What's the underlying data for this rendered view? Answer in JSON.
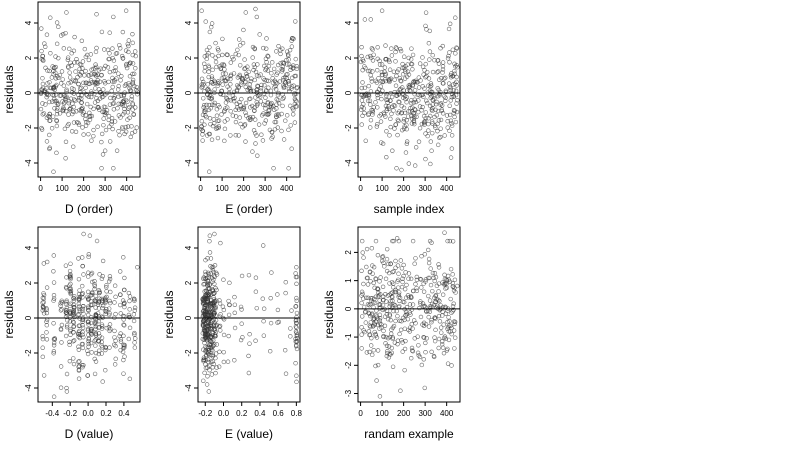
{
  "chart_data": [
    {
      "type": "scatter",
      "title": "",
      "xlabel": "D (order)",
      "ylabel": "residuals",
      "xlim": [
        -12,
        462
      ],
      "ylim": [
        -4.8,
        5.2
      ],
      "xticks": [
        0,
        100,
        200,
        300,
        400
      ],
      "xtick_labels": [
        "0",
        "100",
        "200",
        "300",
        "400"
      ],
      "yticks": [
        -4,
        -2,
        0,
        2,
        4
      ],
      "ytick_labels": [
        "-4",
        "-2",
        "0",
        "2",
        "4"
      ],
      "hline": 0,
      "pattern": "uniform",
      "n_points": 450,
      "x_range": [
        1,
        450
      ],
      "sd": 1.5,
      "seed": 11,
      "outliers": [
        [
          45,
          4.3
        ],
        [
          120,
          4.6
        ],
        [
          260,
          4.5
        ],
        [
          60,
          -4.5
        ],
        [
          300,
          -3.3
        ],
        [
          410,
          3.0
        ]
      ]
    },
    {
      "type": "scatter",
      "title": "",
      "xlabel": "E (order)",
      "ylabel": "residuals",
      "xlim": [
        -12,
        462
      ],
      "ylim": [
        -4.8,
        5.2
      ],
      "xticks": [
        0,
        100,
        200,
        300,
        400
      ],
      "xtick_labels": [
        "0",
        "100",
        "200",
        "300",
        "400"
      ],
      "yticks": [
        -4,
        -2,
        0,
        2,
        4
      ],
      "ytick_labels": [
        "-4",
        "-2",
        "0",
        "2",
        "4"
      ],
      "hline": 0,
      "pattern": "uniform",
      "n_points": 450,
      "x_range": [
        1,
        450
      ],
      "sd": 1.5,
      "seed": 23,
      "outliers": [
        [
          5,
          4.7
        ],
        [
          210,
          4.6
        ],
        [
          255,
          4.8
        ],
        [
          40,
          -4.5
        ],
        [
          330,
          -2.6
        ],
        [
          335,
          -2.5
        ]
      ]
    },
    {
      "type": "scatter",
      "title": "",
      "xlabel": "sample index",
      "ylabel": "residuals",
      "xlim": [
        -12,
        462
      ],
      "ylim": [
        -4.8,
        5.2
      ],
      "xticks": [
        0,
        100,
        200,
        300,
        400
      ],
      "xtick_labels": [
        "0",
        "100",
        "200",
        "300",
        "400"
      ],
      "yticks": [
        -4,
        -2,
        0,
        2,
        4
      ],
      "ytick_labels": [
        "-4",
        "-2",
        "0",
        "2",
        "4"
      ],
      "hline": 0,
      "pattern": "uniform",
      "n_points": 450,
      "x_range": [
        1,
        450
      ],
      "sd": 1.5,
      "seed": 37,
      "outliers": [
        [
          100,
          4.7
        ],
        [
          190,
          -4.4
        ],
        [
          440,
          4.3
        ],
        [
          20,
          4.2
        ],
        [
          330,
          -3.3
        ]
      ]
    },
    {
      "type": "scatter",
      "title": "",
      "xlabel": "D (value)",
      "ylabel": "residuals",
      "xlim": [
        -0.56,
        0.58
      ],
      "ylim": [
        -4.8,
        5.2
      ],
      "xticks": [
        -0.4,
        -0.2,
        0.0,
        0.2,
        0.4
      ],
      "xtick_labels": [
        "-0.4",
        "-0.2",
        "0.0",
        "0.2",
        "0.4"
      ],
      "yticks": [
        -4,
        -2,
        0,
        2,
        4
      ],
      "ytick_labels": [
        "-4",
        "-2",
        "0",
        "2",
        "4"
      ],
      "hline": 0,
      "pattern": "columns",
      "sd": 1.5,
      "seed": 53,
      "columns": [
        [
          -0.5,
          18
        ],
        [
          -0.46,
          10
        ],
        [
          -0.38,
          14
        ],
        [
          -0.3,
          12
        ],
        [
          -0.24,
          22
        ],
        [
          -0.2,
          30
        ],
        [
          -0.16,
          26
        ],
        [
          -0.1,
          34
        ],
        [
          -0.06,
          28
        ],
        [
          0.0,
          30
        ],
        [
          0.04,
          22
        ],
        [
          0.08,
          32
        ],
        [
          0.12,
          24
        ],
        [
          0.16,
          20
        ],
        [
          0.2,
          18
        ],
        [
          0.24,
          14
        ],
        [
          0.3,
          12
        ],
        [
          0.36,
          10
        ],
        [
          0.4,
          24
        ],
        [
          0.46,
          10
        ],
        [
          0.52,
          12
        ]
      ],
      "outliers": [
        [
          -0.38,
          -4.5
        ],
        [
          -0.05,
          4.8
        ],
        [
          0.02,
          4.7
        ],
        [
          0.1,
          4.4
        ],
        [
          0.55,
          2.9
        ]
      ]
    },
    {
      "type": "scatter",
      "title": "",
      "xlabel": "E (value)",
      "ylabel": "residuals",
      "xlim": [
        -0.28,
        0.84
      ],
      "ylim": [
        -4.8,
        5.2
      ],
      "xticks": [
        -0.2,
        0.0,
        0.2,
        0.4,
        0.6,
        0.8
      ],
      "xtick_labels": [
        "-0.2",
        "0.0",
        "0.2",
        "0.4",
        "0.6",
        "0.8"
      ],
      "yticks": [
        -4,
        -2,
        0,
        2,
        4
      ],
      "ytick_labels": [
        "-4",
        "-2",
        "0",
        "2",
        "4"
      ],
      "hline": 0,
      "pattern": "columns",
      "sd": 1.5,
      "seed": 71,
      "columns": [
        [
          -0.22,
          40
        ],
        [
          -0.2,
          60
        ],
        [
          -0.18,
          55
        ],
        [
          -0.16,
          45
        ],
        [
          -0.14,
          40
        ],
        [
          -0.12,
          35
        ],
        [
          -0.1,
          35
        ],
        [
          -0.08,
          18
        ],
        [
          -0.04,
          10
        ],
        [
          0.0,
          8
        ],
        [
          0.06,
          6
        ],
        [
          0.12,
          5
        ],
        [
          0.2,
          6
        ],
        [
          0.28,
          5
        ],
        [
          0.36,
          4
        ],
        [
          0.44,
          5
        ],
        [
          0.52,
          4
        ],
        [
          0.6,
          4
        ],
        [
          0.68,
          4
        ],
        [
          0.74,
          3
        ],
        [
          0.8,
          30
        ]
      ],
      "outliers": [
        [
          -0.15,
          4.7
        ],
        [
          -0.1,
          4.8
        ],
        [
          -0.18,
          -3.8
        ],
        [
          0.05,
          -2.5
        ],
        [
          0.8,
          2.9
        ],
        [
          0.8,
          -3.3
        ]
      ]
    },
    {
      "type": "scatter",
      "title": "",
      "xlabel": "randam example",
      "ylabel": "residuals",
      "xlim": [
        -12,
        462
      ],
      "ylim": [
        -3.3,
        2.9
      ],
      "xticks": [
        0,
        100,
        200,
        300,
        400
      ],
      "xtick_labels": [
        "0",
        "100",
        "200",
        "300",
        "400"
      ],
      "yticks": [
        -3,
        -2,
        -1,
        0,
        1,
        2
      ],
      "ytick_labels": [
        "-3",
        "-2",
        "-1",
        "0",
        "1",
        "2"
      ],
      "hline": 0,
      "pattern": "uniform",
      "n_points": 450,
      "x_range": [
        1,
        450
      ],
      "sd": 1.0,
      "seed": 97,
      "outliers": [
        [
          90,
          -3.1
        ],
        [
          185,
          -2.9
        ],
        [
          390,
          2.7
        ],
        [
          170,
          2.5
        ]
      ]
    }
  ]
}
